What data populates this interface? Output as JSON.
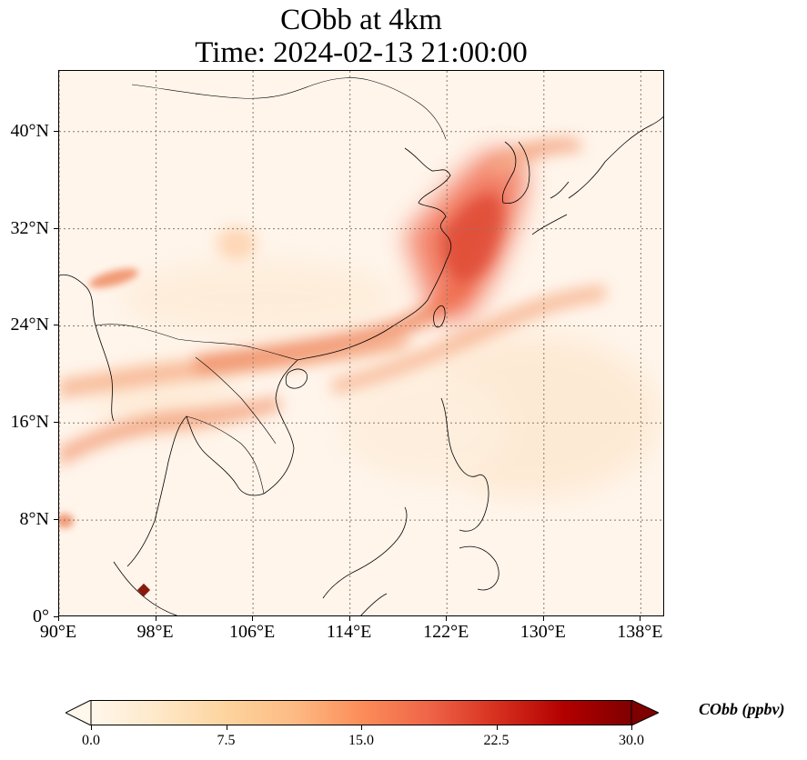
{
  "title": {
    "line1": "CObb at 4km",
    "line2": "Time: 2024-02-13 21:00:00"
  },
  "map": {
    "lon_range": [
      90,
      140
    ],
    "lat_range": [
      0,
      45
    ],
    "lat_ticks": [
      {
        "value": 0,
        "label": "0°"
      },
      {
        "value": 8,
        "label": "8°N"
      },
      {
        "value": 16,
        "label": "16°N"
      },
      {
        "value": 24,
        "label": "24°N"
      },
      {
        "value": 32,
        "label": "32°N"
      },
      {
        "value": 40,
        "label": "40°N"
      }
    ],
    "lon_ticks": [
      {
        "value": 90,
        "label": "90°E"
      },
      {
        "value": 98,
        "label": "98°E"
      },
      {
        "value": 106,
        "label": "106°E"
      },
      {
        "value": 114,
        "label": "114°E"
      },
      {
        "value": 122,
        "label": "122°E"
      },
      {
        "value": 130,
        "label": "130°E"
      },
      {
        "value": 138,
        "label": "138°E"
      }
    ],
    "gridlines": true,
    "gridline_color": "#8a7a6a",
    "coastline_color": "#000000",
    "background_color": "#fff5eb"
  },
  "colorbar": {
    "label": "CObb (ppbv)",
    "min": 0.0,
    "max": 30.0,
    "extend": "both",
    "colormap": "OrRd",
    "ticks": [
      {
        "value": 0.0,
        "label": "0.0"
      },
      {
        "value": 7.5,
        "label": "7.5"
      },
      {
        "value": 15.0,
        "label": "15.0"
      },
      {
        "value": 22.5,
        "label": "22.5"
      },
      {
        "value": 30.0,
        "label": "30.0"
      }
    ],
    "stops": [
      "#fff7ec",
      "#fee8c8",
      "#fdd49e",
      "#fdbb84",
      "#fc8d59",
      "#ef6548",
      "#d7301f",
      "#b30000",
      "#7f0000"
    ]
  },
  "plumes": [
    {
      "name": "east-china-korea-plume",
      "value": 17
    },
    {
      "name": "yellow-sea-core",
      "value": 20
    },
    {
      "name": "south-china-coast-band",
      "value": 12
    },
    {
      "name": "indochina-band",
      "value": 11
    },
    {
      "name": "bay-of-bengal-band",
      "value": 13
    },
    {
      "name": "myanmar-north-spot",
      "value": 11
    },
    {
      "name": "northeast-pacific-streak",
      "value": 7
    },
    {
      "name": "sumatra-hotspot",
      "value": 30
    }
  ]
}
